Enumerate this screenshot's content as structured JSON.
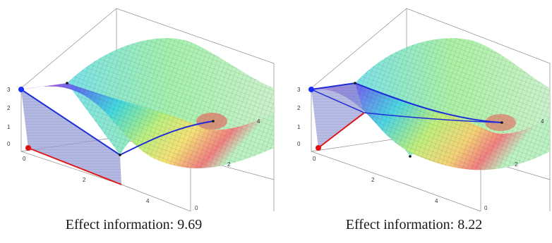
{
  "panels": [
    {
      "caption_label": "Effect information",
      "caption_value": "9.69",
      "caption": "Effect information: 9.69",
      "ticks_z": [
        "0",
        "1",
        "2",
        "3"
      ],
      "ticks_x": [
        "0",
        "2",
        "4"
      ],
      "ticks_y": [
        "0",
        "2",
        "4"
      ]
    },
    {
      "caption_label": "Effect information",
      "caption_value": "8.22",
      "caption": "Effect information: 8.22",
      "ticks_z": [
        "0",
        "1",
        "2",
        "3"
      ],
      "ticks_x": [
        "0",
        "2",
        "4"
      ],
      "ticks_y": [
        "0",
        "2",
        "4"
      ]
    }
  ],
  "colors": {
    "start_point": "#1a2cff",
    "end_point": "#e01010",
    "path_line": "#1f2bd6",
    "base_line": "#e01a1a",
    "curtain": "#9aa0d8",
    "box": "#888888"
  }
}
